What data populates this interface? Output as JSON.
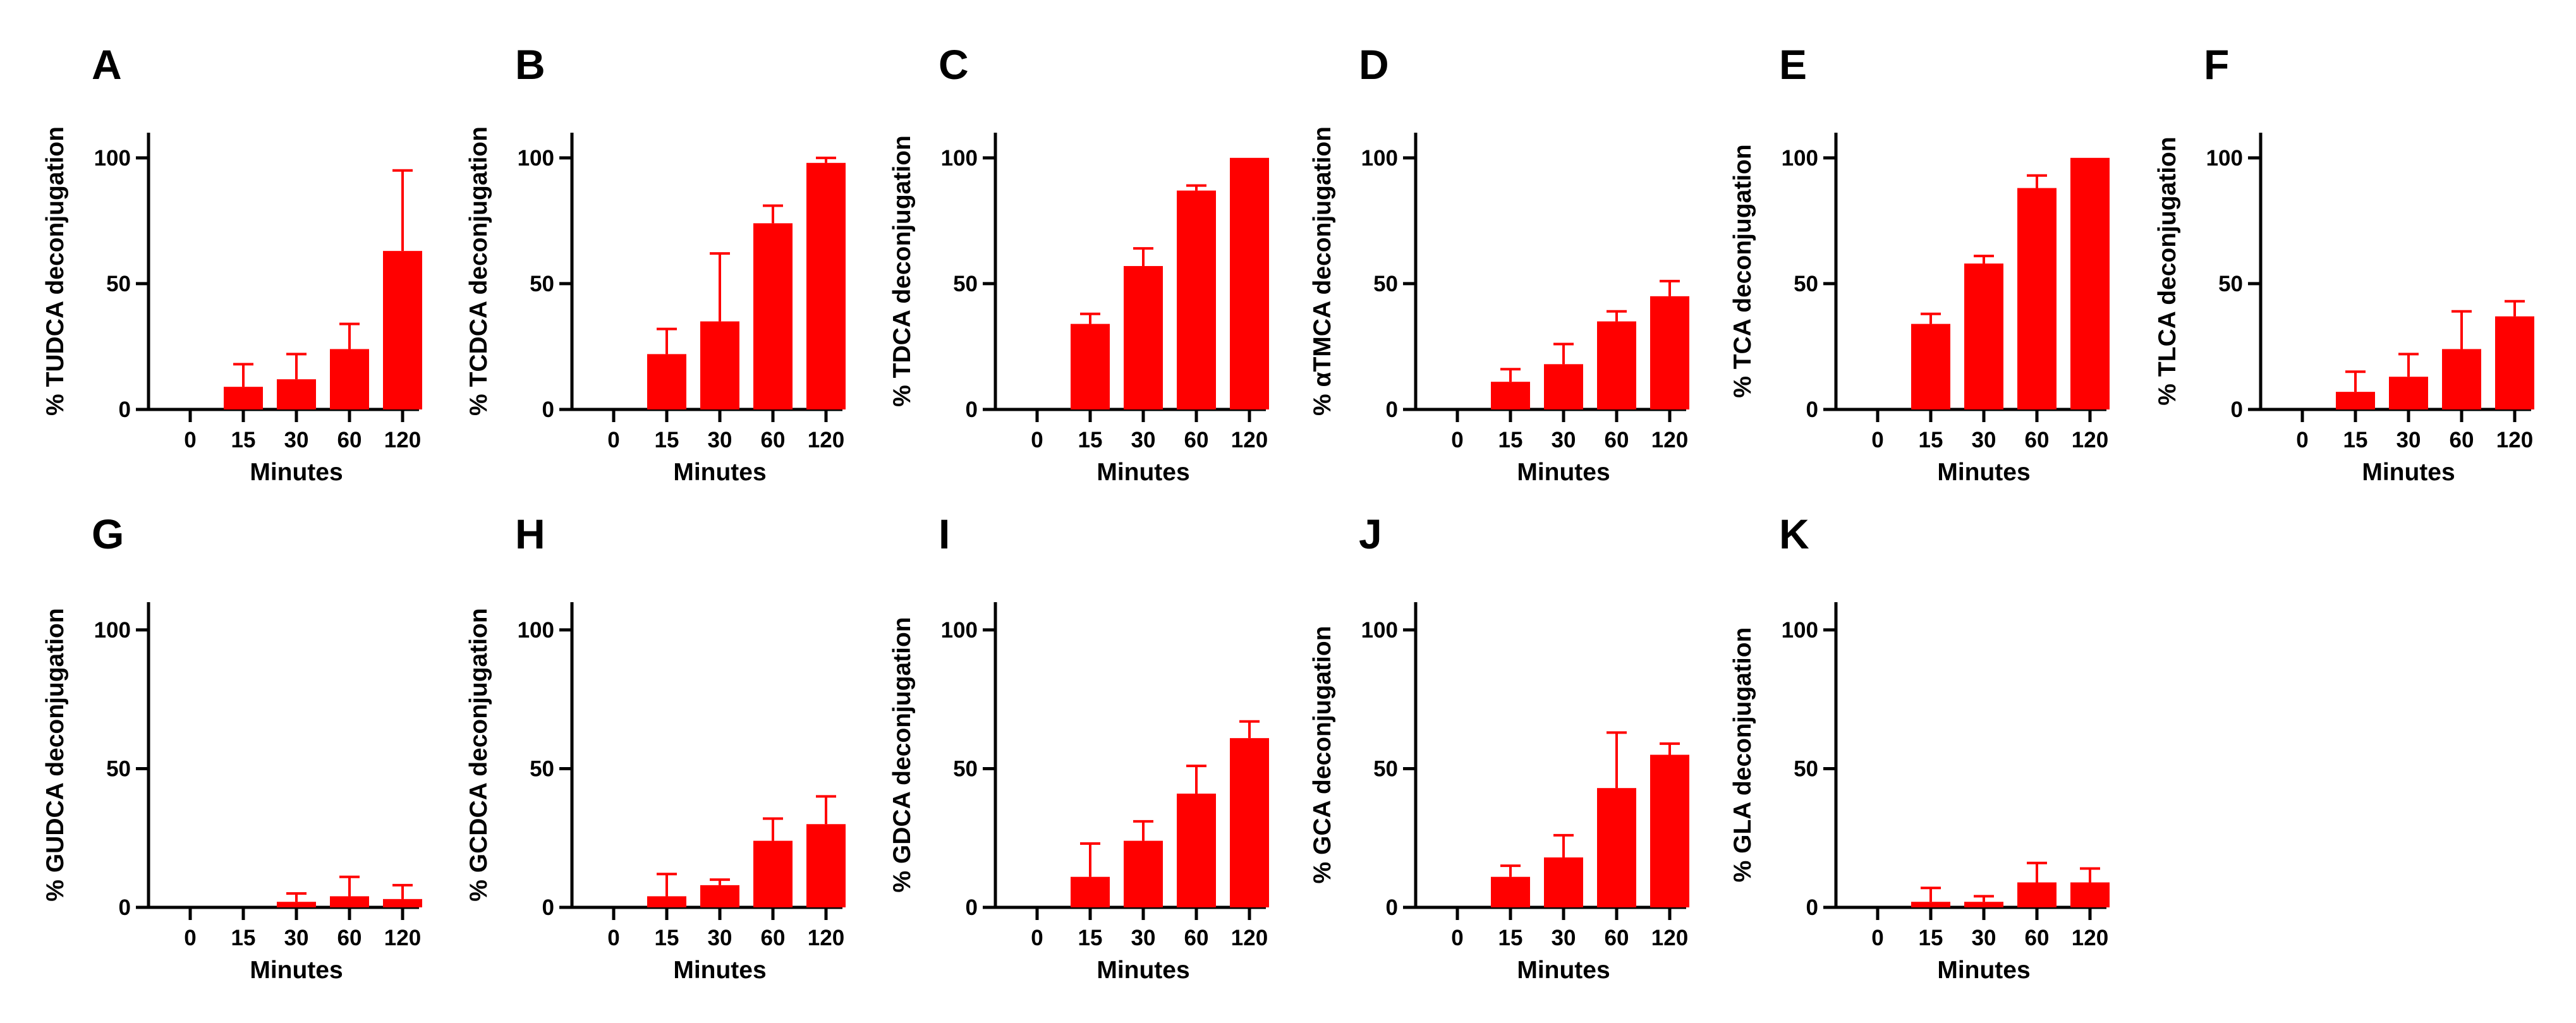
{
  "figure": {
    "x_axis_label": "Minutes",
    "bar_color": "#ff0000",
    "axis_color": "#000000"
  },
  "chart_data": [
    {
      "type": "bar",
      "panel": "A",
      "ylabel": "% TUDCA deconjugation",
      "xlabel": "Minutes",
      "categories": [
        "0",
        "15",
        "30",
        "60",
        "120"
      ],
      "values": [
        0,
        9,
        12,
        24,
        63
      ],
      "errors": [
        0,
        9,
        10,
        10,
        32
      ],
      "ylim": [
        0,
        110
      ],
      "yticks": [
        0,
        50,
        100
      ]
    },
    {
      "type": "bar",
      "panel": "B",
      "ylabel": "% TCDCA deconjugation",
      "xlabel": "Minutes",
      "categories": [
        "0",
        "15",
        "30",
        "60",
        "120"
      ],
      "values": [
        0,
        22,
        35,
        74,
        98
      ],
      "errors": [
        0,
        10,
        27,
        7,
        2
      ],
      "ylim": [
        0,
        110
      ],
      "yticks": [
        0,
        50,
        100
      ]
    },
    {
      "type": "bar",
      "panel": "C",
      "ylabel": "% TDCA deconjugation",
      "xlabel": "Minutes",
      "categories": [
        "0",
        "15",
        "30",
        "60",
        "120"
      ],
      "values": [
        0,
        34,
        57,
        87,
        100
      ],
      "errors": [
        0,
        4,
        7,
        2,
        0
      ],
      "ylim": [
        0,
        110
      ],
      "yticks": [
        0,
        50,
        100
      ]
    },
    {
      "type": "bar",
      "panel": "D",
      "ylabel": "% αTMCA deconjugation",
      "xlabel": "Minutes",
      "categories": [
        "0",
        "15",
        "30",
        "60",
        "120"
      ],
      "values": [
        0,
        11,
        18,
        35,
        45
      ],
      "errors": [
        0,
        5,
        8,
        4,
        6
      ],
      "ylim": [
        0,
        110
      ],
      "yticks": [
        0,
        50,
        100
      ]
    },
    {
      "type": "bar",
      "panel": "E",
      "ylabel": "% TCA deconjugation",
      "xlabel": "Minutes",
      "categories": [
        "0",
        "15",
        "30",
        "60",
        "120"
      ],
      "values": [
        0,
        34,
        58,
        88,
        100
      ],
      "errors": [
        0,
        4,
        3,
        5,
        0
      ],
      "ylim": [
        0,
        110
      ],
      "yticks": [
        0,
        50,
        100
      ]
    },
    {
      "type": "bar",
      "panel": "F",
      "ylabel": "% TLCA deconjugation",
      "xlabel": "Minutes",
      "categories": [
        "0",
        "15",
        "30",
        "60",
        "120"
      ],
      "values": [
        0,
        7,
        13,
        24,
        37
      ],
      "errors": [
        0,
        8,
        9,
        15,
        6
      ],
      "ylim": [
        0,
        110
      ],
      "yticks": [
        0,
        50,
        100
      ]
    },
    {
      "type": "bar",
      "panel": "G",
      "ylabel": "% GUDCA deconjugation",
      "xlabel": "Minutes",
      "categories": [
        "0",
        "15",
        "30",
        "60",
        "120"
      ],
      "values": [
        0,
        0,
        2,
        4,
        3
      ],
      "errors": [
        0,
        0,
        3,
        7,
        5
      ],
      "ylim": [
        0,
        110
      ],
      "yticks": [
        0,
        50,
        100
      ]
    },
    {
      "type": "bar",
      "panel": "H",
      "ylabel": "% GCDCA deconjugation",
      "xlabel": "Minutes",
      "categories": [
        "0",
        "15",
        "30",
        "60",
        "120"
      ],
      "values": [
        0,
        4,
        8,
        24,
        30
      ],
      "errors": [
        0,
        8,
        2,
        8,
        10
      ],
      "ylim": [
        0,
        110
      ],
      "yticks": [
        0,
        50,
        100
      ]
    },
    {
      "type": "bar",
      "panel": "I",
      "ylabel": "% GDCA deconjugation",
      "xlabel": "Minutes",
      "categories": [
        "0",
        "15",
        "30",
        "60",
        "120"
      ],
      "values": [
        0,
        11,
        24,
        41,
        61
      ],
      "errors": [
        0,
        12,
        7,
        10,
        6
      ],
      "ylim": [
        0,
        110
      ],
      "yticks": [
        0,
        50,
        100
      ]
    },
    {
      "type": "bar",
      "panel": "J",
      "ylabel": "% GCA deconjugation",
      "xlabel": "Minutes",
      "categories": [
        "0",
        "15",
        "30",
        "60",
        "120"
      ],
      "values": [
        0,
        11,
        18,
        43,
        55
      ],
      "errors": [
        0,
        4,
        8,
        20,
        4
      ],
      "ylim": [
        0,
        110
      ],
      "yticks": [
        0,
        50,
        100
      ]
    },
    {
      "type": "bar",
      "panel": "K",
      "ylabel": "% GLA deconjugation",
      "xlabel": "Minutes",
      "categories": [
        "0",
        "15",
        "30",
        "60",
        "120"
      ],
      "values": [
        0,
        2,
        2,
        9,
        9
      ],
      "errors": [
        0,
        5,
        2,
        7,
        5
      ],
      "ylim": [
        0,
        110
      ],
      "yticks": [
        0,
        50,
        100
      ]
    }
  ]
}
